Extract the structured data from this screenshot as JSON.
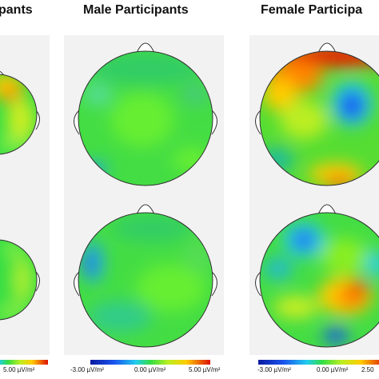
{
  "titles": {
    "left": "pants",
    "middle": "Male Participants",
    "right": "Female Participa"
  },
  "colorbars": {
    "left": {
      "max_label": "5.00 µV/m²"
    },
    "middle": {
      "min_label": "-3.00 µV/m²",
      "mid_label": "0.00 µV/m²",
      "max_label": "5.00 µV/m²"
    },
    "right": {
      "min_label": "-3.00 µV/m²",
      "mid_label": "0.00 µV/m²",
      "max_label": "2.50"
    }
  },
  "colors": {
    "background": "#ffffff",
    "panel": "#f2f2f2",
    "neutral_green": "#33dd44",
    "positive_red": "#ee2200",
    "negative_blue": "#0a33dd"
  },
  "maps": [
    {
      "column": "left",
      "row": "top"
    },
    {
      "column": "left",
      "row": "bottom"
    },
    {
      "column": "middle",
      "row": "top"
    },
    {
      "column": "middle",
      "row": "bottom"
    },
    {
      "column": "right",
      "row": "top"
    },
    {
      "column": "right",
      "row": "bottom"
    }
  ]
}
